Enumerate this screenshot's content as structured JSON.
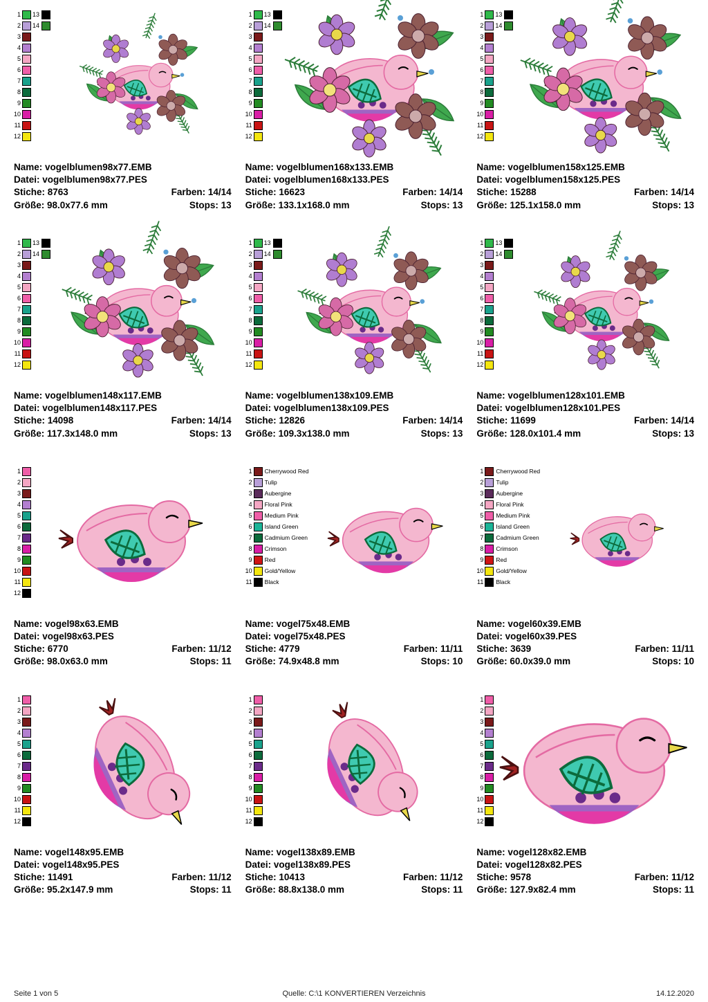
{
  "labels": {
    "name": "Name:",
    "datei": "Datei:",
    "stiche": "Stiche:",
    "farben": "Farben:",
    "groesse": "Größe:",
    "stops": "Stops:"
  },
  "footer": {
    "left": "Seite 1 von 5",
    "center": "Quelle: C:\\1 KONVERTIEREN Verzeichnis",
    "right": "14.12.2020"
  },
  "paletteA": [
    {
      "n": 1,
      "c": "#2fb94a",
      "n2": 13,
      "c2": "#000000"
    },
    {
      "n": 2,
      "c": "#b89fd8",
      "n2": 14,
      "c2": "#2e8b2e"
    },
    {
      "n": 3,
      "c": "#7a1a1a"
    },
    {
      "n": 4,
      "c": "#b37fd0"
    },
    {
      "n": 5,
      "c": "#f4a6c3"
    },
    {
      "n": 6,
      "c": "#ef5ea8"
    },
    {
      "n": 7,
      "c": "#1aa28c"
    },
    {
      "n": 8,
      "c": "#0c6b3c"
    },
    {
      "n": 9,
      "c": "#228b22"
    },
    {
      "n": 10,
      "c": "#d91ea6"
    },
    {
      "n": 11,
      "c": "#c81414"
    },
    {
      "n": 12,
      "c": "#f4e60f"
    }
  ],
  "paletteB": [
    {
      "n": 1,
      "c": "#ef5ea8"
    },
    {
      "n": 2,
      "c": "#f4a6c3"
    },
    {
      "n": 3,
      "c": "#7a1a1a"
    },
    {
      "n": 4,
      "c": "#b37fd0"
    },
    {
      "n": 5,
      "c": "#1aa28c"
    },
    {
      "n": 6,
      "c": "#0c6b3c"
    },
    {
      "n": 7,
      "c": "#6b2b8a"
    },
    {
      "n": 8,
      "c": "#d91ea6"
    },
    {
      "n": 9,
      "c": "#228b22"
    },
    {
      "n": 10,
      "c": "#c81414"
    },
    {
      "n": 11,
      "c": "#f4e60f"
    },
    {
      "n": 12,
      "c": "#000000"
    }
  ],
  "paletteC": [
    {
      "n": 1,
      "c": "#7a1a1a",
      "name": "Cherrywood Red"
    },
    {
      "n": 2,
      "c": "#b89fd8",
      "name": "Tulip"
    },
    {
      "n": 3,
      "c": "#5b2b5b",
      "name": "Aubergine"
    },
    {
      "n": 4,
      "c": "#f4a6c3",
      "name": "Floral Pink"
    },
    {
      "n": 5,
      "c": "#ef5ea8",
      "name": "Medium Pink"
    },
    {
      "n": 6,
      "c": "#1cb598",
      "name": "Island Green"
    },
    {
      "n": 7,
      "c": "#0c6b3c",
      "name": "Cadmium Green"
    },
    {
      "n": 8,
      "c": "#d91ea6",
      "name": "Crimson"
    },
    {
      "n": 9,
      "c": "#d01515",
      "name": "Red"
    },
    {
      "n": 10,
      "c": "#f4e60f",
      "name": "Gold/Yellow"
    },
    {
      "n": 11,
      "c": "#000000",
      "name": "Black"
    }
  ],
  "cards": [
    {
      "palette": "A",
      "art": "flower",
      "scale": 0.7,
      "name": "vogelblumen98x77.EMB",
      "datei": "vogelblumen98x77.PES",
      "stiche": "8763",
      "farben": "14/14",
      "groesse": "98.0x77.6 mm",
      "stops": "13"
    },
    {
      "palette": "A",
      "art": "flower",
      "scale": 1.0,
      "name": "vogelblumen168x133.EMB",
      "datei": "vogelblumen168x133.PES",
      "stiche": "16623",
      "farben": "14/14",
      "groesse": "133.1x168.0 mm",
      "stops": "13"
    },
    {
      "palette": "A",
      "art": "flower",
      "scale": 0.95,
      "name": "vogelblumen158x125.EMB",
      "datei": "vogelblumen158x125.PES",
      "stiche": "15288",
      "farben": "14/14",
      "groesse": "125.1x158.0 mm",
      "stops": "13"
    },
    {
      "palette": "A",
      "art": "flower",
      "scale": 0.9,
      "name": "vogelblumen148x117.EMB",
      "datei": "vogelblumen148x117.PES",
      "stiche": "14098",
      "farben": "14/14",
      "groesse": "117.3x148.0 mm",
      "stops": "13"
    },
    {
      "palette": "A",
      "art": "flower",
      "scale": 0.85,
      "name": "vogelblumen138x109.EMB",
      "datei": "vogelblumen138x109.PES",
      "stiche": "12826",
      "farben": "14/14",
      "groesse": "109.3x138.0 mm",
      "stops": "13"
    },
    {
      "palette": "A",
      "art": "flower",
      "scale": 0.8,
      "name": "vogelblumen128x101.EMB",
      "datei": "vogelblumen128x101.PES",
      "stiche": "11699",
      "farben": "14/14",
      "groesse": "128.0x101.4 mm",
      "stops": "13"
    },
    {
      "palette": "B",
      "art": "bird",
      "scale": 1.0,
      "name": "vogel98x63.EMB",
      "datei": "vogel98x63.PES",
      "stiche": "6770",
      "farben": "11/12",
      "groesse": "98.0x63.0 mm",
      "stops": "11"
    },
    {
      "palette": "C",
      "art": "bird",
      "scale": 0.8,
      "name": "vogel75x48.EMB",
      "datei": "vogel75x48.PES",
      "stiche": "4779",
      "farben": "11/11",
      "groesse": "74.9x48.8 mm",
      "stops": "10"
    },
    {
      "palette": "C",
      "art": "bird",
      "scale": 0.65,
      "name": "vogel60x39.EMB",
      "datei": "vogel60x39.PES",
      "stiche": "3639",
      "farben": "11/11",
      "groesse": "60.0x39.0 mm",
      "stops": "10"
    },
    {
      "palette": "B",
      "art": "birdv",
      "scale": 1.0,
      "name": "vogel148x95.EMB",
      "datei": "vogel148x95.PES",
      "stiche": "11491",
      "farben": "11/12",
      "groesse": "95.2x147.9 mm",
      "stops": "11"
    },
    {
      "palette": "B",
      "art": "birdv",
      "scale": 0.94,
      "name": "vogel138x89.EMB",
      "datei": "vogel138x89.PES",
      "stiche": "10413",
      "farben": "11/12",
      "groesse": "88.8x138.0 mm",
      "stops": "11"
    },
    {
      "palette": "B",
      "art": "bird",
      "scale": 1.3,
      "name": "vogel128x82.EMB",
      "datei": "vogel128x82.PES",
      "stiche": "9578",
      "farben": "11/12",
      "groesse": "127.9x82.4 mm",
      "stops": "11"
    }
  ],
  "colors": {
    "birdBody": "#f4b7cf",
    "birdBodyStroke": "#e46aa3",
    "wing": "#3fcab0",
    "wingStroke": "#0c6b3c",
    "bellyPurple": "#9a5fc2",
    "bellyMagenta": "#e33aa6",
    "beak": "#e8d84a",
    "tailRed": "#a02222",
    "leafGreen": "#3fa84e",
    "leafDark": "#2b7c39",
    "flowerPink": "#d66aa6",
    "flowerBrown": "#8f5a55",
    "flowerPurple": "#b07dd1",
    "eye": "#000000"
  }
}
